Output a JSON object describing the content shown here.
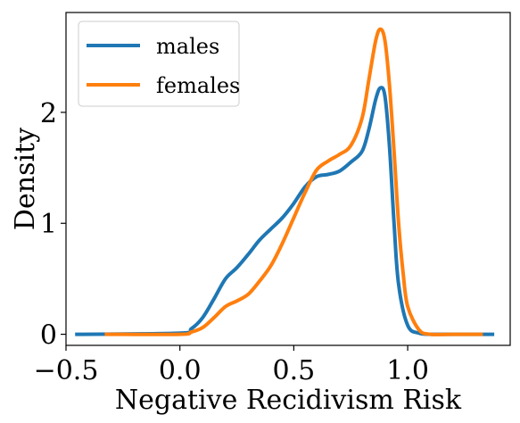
{
  "chart_data": {
    "type": "line",
    "title": "",
    "xlabel": "Negative Recidivism Risk",
    "ylabel": "Density",
    "xlim": [
      -0.5,
      1.45
    ],
    "ylim": [
      -0.1,
      2.9
    ],
    "xticks": [
      {
        "value": -0.5,
        "label": "−0.5"
      },
      {
        "value": 0.0,
        "label": "0.0"
      },
      {
        "value": 0.5,
        "label": "0.5"
      },
      {
        "value": 1.0,
        "label": "1.0"
      }
    ],
    "yticks": [
      {
        "value": 0,
        "label": "0"
      },
      {
        "value": 1,
        "label": "1"
      },
      {
        "value": 2,
        "label": "2"
      }
    ],
    "grid": false,
    "legend": "upper-left",
    "series": [
      {
        "name": "males",
        "color": "#1f77b4",
        "x": [
          -0.46,
          0.0,
          0.05,
          0.1,
          0.15,
          0.2,
          0.25,
          0.3,
          0.35,
          0.4,
          0.45,
          0.5,
          0.55,
          0.6,
          0.65,
          0.7,
          0.75,
          0.8,
          0.83,
          0.86,
          0.88,
          0.9,
          0.92,
          0.94,
          0.96,
          1.0,
          1.05,
          1.1,
          1.2,
          1.38
        ],
        "values": [
          0.0,
          0.01,
          0.05,
          0.15,
          0.32,
          0.5,
          0.6,
          0.72,
          0.85,
          0.95,
          1.05,
          1.18,
          1.33,
          1.42,
          1.44,
          1.47,
          1.55,
          1.65,
          1.85,
          2.12,
          2.22,
          2.15,
          1.7,
          1.0,
          0.45,
          0.08,
          0.01,
          0.0,
          0.0,
          0.0
        ]
      },
      {
        "name": "females",
        "color": "#ff7f0e",
        "x": [
          -0.33,
          0.0,
          0.05,
          0.1,
          0.15,
          0.2,
          0.25,
          0.3,
          0.35,
          0.4,
          0.45,
          0.5,
          0.55,
          0.6,
          0.65,
          0.7,
          0.75,
          0.8,
          0.83,
          0.86,
          0.88,
          0.9,
          0.92,
          0.94,
          0.96,
          0.98,
          1.0,
          1.05,
          1.1,
          1.2,
          1.33
        ],
        "values": [
          0.0,
          0.0,
          0.02,
          0.06,
          0.15,
          0.25,
          0.3,
          0.36,
          0.48,
          0.62,
          0.82,
          1.05,
          1.28,
          1.48,
          1.56,
          1.62,
          1.7,
          1.95,
          2.3,
          2.65,
          2.75,
          2.65,
          2.25,
          1.65,
          1.0,
          0.55,
          0.25,
          0.04,
          0.0,
          0.0,
          0.0
        ]
      }
    ]
  }
}
